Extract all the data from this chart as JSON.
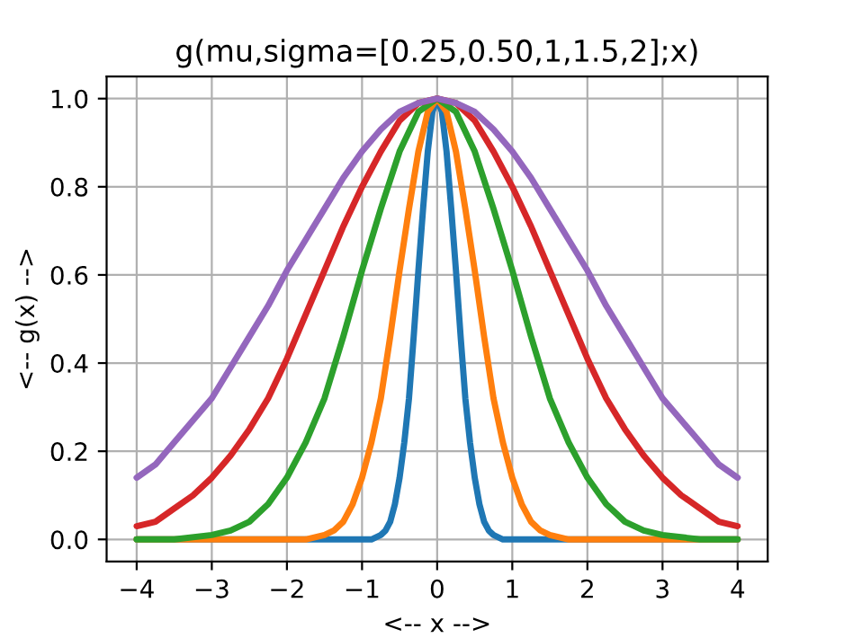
{
  "chart_data": {
    "type": "line",
    "title": "g(mu,sigma=[0.25,0.50,1,1.5,2];x)",
    "xlabel": "<-- x -->",
    "ylabel": "<-- g(x) -->",
    "xlim": [
      -4.4,
      4.4
    ],
    "ylim": [
      -0.05,
      1.05
    ],
    "xticks": [
      {
        "value": -4,
        "label": "−4"
      },
      {
        "value": -3,
        "label": "−3"
      },
      {
        "value": -2,
        "label": "−2"
      },
      {
        "value": -1,
        "label": "−1"
      },
      0,
      1,
      2,
      3,
      4
    ],
    "yticks": [
      {
        "value": 0,
        "label": "0.0"
      },
      {
        "value": 0.2,
        "label": "0.2"
      },
      {
        "value": 0.4,
        "label": "0.4"
      },
      {
        "value": 0.6,
        "label": "0.6"
      },
      {
        "value": 0.8,
        "label": "0.8"
      },
      {
        "value": 1,
        "label": "1.0"
      }
    ],
    "grid": true,
    "marker": "none",
    "line_style": "solid",
    "series": [
      {
        "color": "#1f77b4",
        "x": [
          -4,
          -1,
          -0.875,
          -0.75,
          -0.6875,
          -0.625,
          -0.5625,
          -0.5,
          -0.4375,
          -0.375,
          -0.3125,
          -0.25,
          -0.1875,
          -0.125,
          -0.0625,
          0,
          0.0625,
          0.125,
          0.1875,
          0.25,
          0.3125,
          0.375,
          0.4375,
          0.5,
          0.5625,
          0.625,
          0.6875,
          0.75,
          0.875,
          1,
          4
        ],
        "values": [
          0,
          0,
          0,
          0.01,
          0.02,
          0.04,
          0.08,
          0.14,
          0.22,
          0.32,
          0.46,
          0.61,
          0.75,
          0.88,
          0.97,
          1,
          0.97,
          0.88,
          0.75,
          0.61,
          0.46,
          0.32,
          0.22,
          0.14,
          0.08,
          0.04,
          0.02,
          0.01,
          0,
          0,
          0
        ]
      },
      {
        "color": "#ff7f0e",
        "x": [
          -4,
          -2,
          -1.75,
          -1.5,
          -1.375,
          -1.25,
          -1.125,
          -1,
          -0.875,
          -0.75,
          -0.625,
          -0.5,
          -0.375,
          -0.25,
          -0.125,
          0,
          0.125,
          0.25,
          0.375,
          0.5,
          0.625,
          0.75,
          0.875,
          1,
          1.125,
          1.25,
          1.375,
          1.5,
          1.75,
          2,
          4
        ],
        "values": [
          0,
          0,
          0,
          0.01,
          0.02,
          0.04,
          0.08,
          0.14,
          0.22,
          0.32,
          0.46,
          0.61,
          0.75,
          0.88,
          0.97,
          1,
          0.97,
          0.88,
          0.75,
          0.61,
          0.46,
          0.32,
          0.22,
          0.14,
          0.08,
          0.04,
          0.02,
          0.01,
          0,
          0,
          0
        ]
      },
      {
        "color": "#2ca02c",
        "x": [
          -4,
          -3.5,
          -3,
          -2.75,
          -2.5,
          -2.25,
          -2,
          -1.75,
          -1.5,
          -1.25,
          -1,
          -0.75,
          -0.5,
          -0.25,
          0,
          0.25,
          0.5,
          0.75,
          1,
          1.25,
          1.5,
          1.75,
          2,
          2.25,
          2.5,
          2.75,
          3,
          3.5,
          4
        ],
        "values": [
          0,
          0,
          0.01,
          0.02,
          0.04,
          0.08,
          0.14,
          0.22,
          0.32,
          0.46,
          0.61,
          0.75,
          0.88,
          0.97,
          1,
          0.97,
          0.88,
          0.75,
          0.61,
          0.46,
          0.32,
          0.22,
          0.14,
          0.08,
          0.04,
          0.02,
          0.01,
          0,
          0
        ]
      },
      {
        "color": "#d62728",
        "x": [
          -4,
          -3.75,
          -3.5,
          -3.25,
          -3,
          -2.75,
          -2.5,
          -2.25,
          -2,
          -1.75,
          -1.5,
          -1.25,
          -1,
          -0.75,
          -0.5,
          -0.25,
          0,
          0.25,
          0.5,
          0.75,
          1,
          1.25,
          1.5,
          1.75,
          2,
          2.25,
          2.5,
          2.75,
          3,
          3.25,
          3.5,
          3.75,
          4
        ],
        "values": [
          0.03,
          0.04,
          0.07,
          0.1,
          0.14,
          0.19,
          0.25,
          0.32,
          0.41,
          0.51,
          0.61,
          0.71,
          0.8,
          0.88,
          0.95,
          0.99,
          1,
          0.99,
          0.95,
          0.88,
          0.8,
          0.71,
          0.61,
          0.51,
          0.41,
          0.32,
          0.25,
          0.19,
          0.14,
          0.1,
          0.07,
          0.04,
          0.03
        ]
      },
      {
        "color": "#9467bd",
        "x": [
          -4,
          -3.75,
          -3.5,
          -3.25,
          -3,
          -2.75,
          -2.5,
          -2.25,
          -2,
          -1.75,
          -1.5,
          -1.25,
          -1,
          -0.75,
          -0.5,
          -0.25,
          0,
          0.25,
          0.5,
          0.75,
          1,
          1.25,
          1.5,
          1.75,
          2,
          2.25,
          2.5,
          2.75,
          3,
          3.25,
          3.5,
          3.75,
          4
        ],
        "values": [
          0.14,
          0.17,
          0.22,
          0.27,
          0.32,
          0.39,
          0.46,
          0.53,
          0.61,
          0.68,
          0.75,
          0.82,
          0.88,
          0.93,
          0.97,
          0.99,
          1,
          0.99,
          0.97,
          0.93,
          0.88,
          0.82,
          0.75,
          0.68,
          0.61,
          0.53,
          0.46,
          0.39,
          0.32,
          0.27,
          0.22,
          0.17,
          0.14
        ]
      }
    ]
  }
}
